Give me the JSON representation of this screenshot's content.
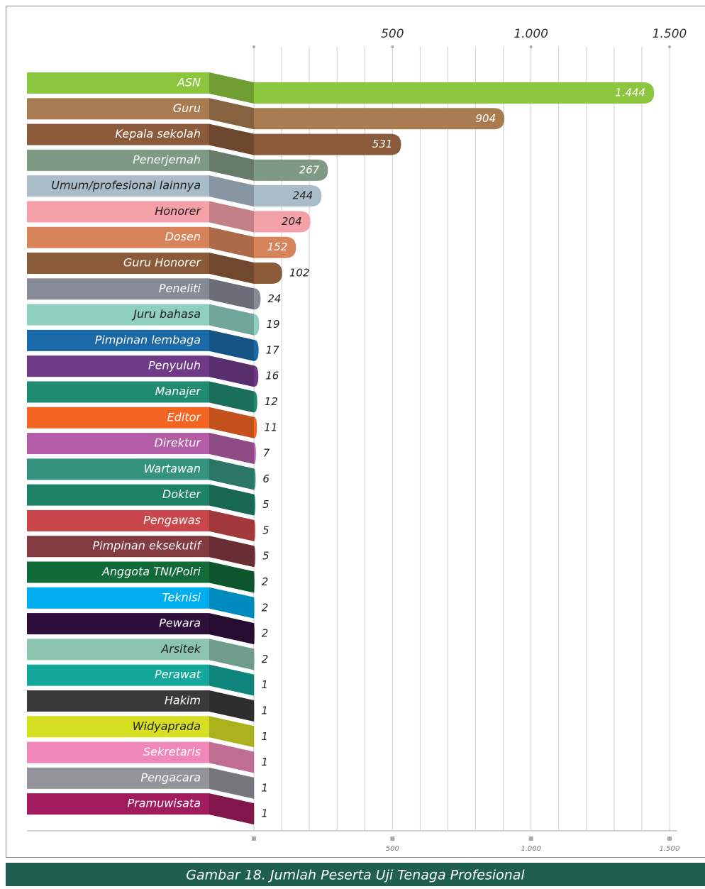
{
  "chart_data": {
    "type": "barh",
    "caption": "Gambar 18. Jumlah Peserta Uji  Tenaga Profesional",
    "categories": [
      "ASN",
      "Guru",
      "Kepala sekolah",
      "Penerjemah",
      "Umum/profesional lainnya",
      "Honorer",
      "Dosen",
      "Guru Honorer",
      "Peneliti",
      "Juru bahasa",
      "Pimpinan lembaga",
      "Penyuluh",
      "Manajer",
      "Editor",
      "Direktur",
      "Wartawan",
      "Dokter",
      "Pengawas",
      "Pimpinan eksekutif",
      "Anggota TNI/Polri",
      "Teknisi",
      "Pewara",
      "Arsitek",
      "Perawat",
      "Hakim",
      "Widyaprada",
      "Sekretaris",
      "Pengacara",
      "Pramuwisata"
    ],
    "values": [
      1444,
      904,
      531,
      267,
      244,
      204,
      152,
      102,
      24,
      19,
      17,
      16,
      12,
      11,
      7,
      6,
      5,
      5,
      5,
      2,
      2,
      2,
      2,
      1,
      1,
      1,
      1,
      1,
      1
    ],
    "value_labels": [
      "1.444",
      "904",
      "531",
      "267",
      "244",
      "204",
      "152",
      "102",
      "24",
      "19",
      "17",
      "16",
      "12",
      "11",
      "7",
      "6",
      "5",
      "5",
      "5",
      "2",
      "2",
      "2",
      "2",
      "1",
      "1",
      "1",
      "1",
      "1",
      "1"
    ],
    "colors": [
      "#8cc63e",
      "#a87b50",
      "#8a5a3a",
      "#7f9a84",
      "#a9bcc8",
      "#f4a0a8",
      "#d8845a",
      "#8b5a38",
      "#868a96",
      "#8fcfc0",
      "#1c69a8",
      "#6e3a88",
      "#1f8b70",
      "#f26522",
      "#b35ea6",
      "#35927e",
      "#1e8266",
      "#c9474a",
      "#833a40",
      "#106b38",
      "#00aeef",
      "#2e0f3c",
      "#8cc4ae",
      "#13a89a",
      "#3a3a3a",
      "#d7df23",
      "#ef88b8",
      "#939598",
      "#a01c5e"
    ],
    "xlim": [
      0,
      1500
    ],
    "xticks": [
      500,
      {
        "value": 1000,
        "label": "1.000"
      },
      {
        "value": 1500,
        "label": "1.500"
      }
    ],
    "minor_xticks": [
      0,
      100,
      200,
      300,
      400,
      500,
      600,
      700,
      800,
      900,
      1000,
      1100,
      1200,
      1300,
      1400,
      1500
    ],
    "grid": true
  }
}
